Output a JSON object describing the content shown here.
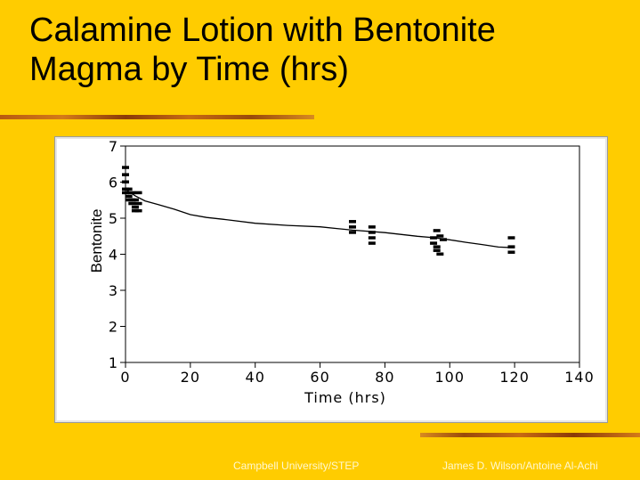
{
  "slide": {
    "title_line1": "Calamine Lotion with Bentonite",
    "title_line2": "Magma by Time (hrs)",
    "footer_left": "Campbell University/STEP",
    "footer_right": "James D. Wilson/Antoine Al-Achi"
  },
  "colors": {
    "background": "#ffcc00",
    "plot_ink": "#000000",
    "footer_text": "#fff8d0"
  },
  "chart_data": {
    "type": "scatter",
    "title": "",
    "xlabel": "Time (hrs)",
    "ylabel": "Bentonite",
    "xlim": [
      0,
      140
    ],
    "ylim": [
      1,
      7
    ],
    "xticks": [
      0,
      20,
      40,
      60,
      80,
      100,
      120,
      140
    ],
    "yticks": [
      1,
      2,
      3,
      4,
      5,
      6,
      7
    ],
    "grid": false,
    "series": [
      {
        "kind": "points",
        "marker": "dash",
        "points": [
          {
            "x": 0,
            "y": 6.4
          },
          {
            "x": 0,
            "y": 6.2
          },
          {
            "x": 0,
            "y": 6.0
          },
          {
            "x": 0,
            "y": 5.8
          },
          {
            "x": 0,
            "y": 5.7
          },
          {
            "x": 1,
            "y": 5.8
          },
          {
            "x": 1,
            "y": 5.6
          },
          {
            "x": 1,
            "y": 5.5
          },
          {
            "x": 2,
            "y": 5.7
          },
          {
            "x": 2,
            "y": 5.5
          },
          {
            "x": 2,
            "y": 5.4
          },
          {
            "x": 3,
            "y": 5.5
          },
          {
            "x": 3,
            "y": 5.3
          },
          {
            "x": 3,
            "y": 5.2
          },
          {
            "x": 4,
            "y": 5.7
          },
          {
            "x": 4,
            "y": 5.4
          },
          {
            "x": 4,
            "y": 5.2
          },
          {
            "x": 70,
            "y": 4.9
          },
          {
            "x": 70,
            "y": 4.75
          },
          {
            "x": 70,
            "y": 4.6
          },
          {
            "x": 76,
            "y": 4.75
          },
          {
            "x": 76,
            "y": 4.6
          },
          {
            "x": 76,
            "y": 4.45
          },
          {
            "x": 76,
            "y": 4.3
          },
          {
            "x": 95,
            "y": 4.45
          },
          {
            "x": 95,
            "y": 4.3
          },
          {
            "x": 96,
            "y": 4.65
          },
          {
            "x": 96,
            "y": 4.2
          },
          {
            "x": 96,
            "y": 4.1
          },
          {
            "x": 97,
            "y": 4.5
          },
          {
            "x": 97,
            "y": 4.0
          },
          {
            "x": 98,
            "y": 4.4
          },
          {
            "x": 119,
            "y": 4.45
          },
          {
            "x": 119,
            "y": 4.2
          },
          {
            "x": 119,
            "y": 4.05
          }
        ]
      },
      {
        "kind": "line",
        "x": [
          0,
          3,
          6,
          10,
          15,
          20,
          25,
          30,
          40,
          50,
          60,
          70,
          80,
          90,
          95,
          100,
          105,
          110,
          115,
          120
        ],
        "y": [
          5.8,
          5.62,
          5.48,
          5.38,
          5.25,
          5.1,
          5.02,
          4.97,
          4.86,
          4.8,
          4.76,
          4.67,
          4.6,
          4.5,
          4.46,
          4.4,
          4.33,
          4.27,
          4.2,
          4.18
        ]
      }
    ]
  }
}
